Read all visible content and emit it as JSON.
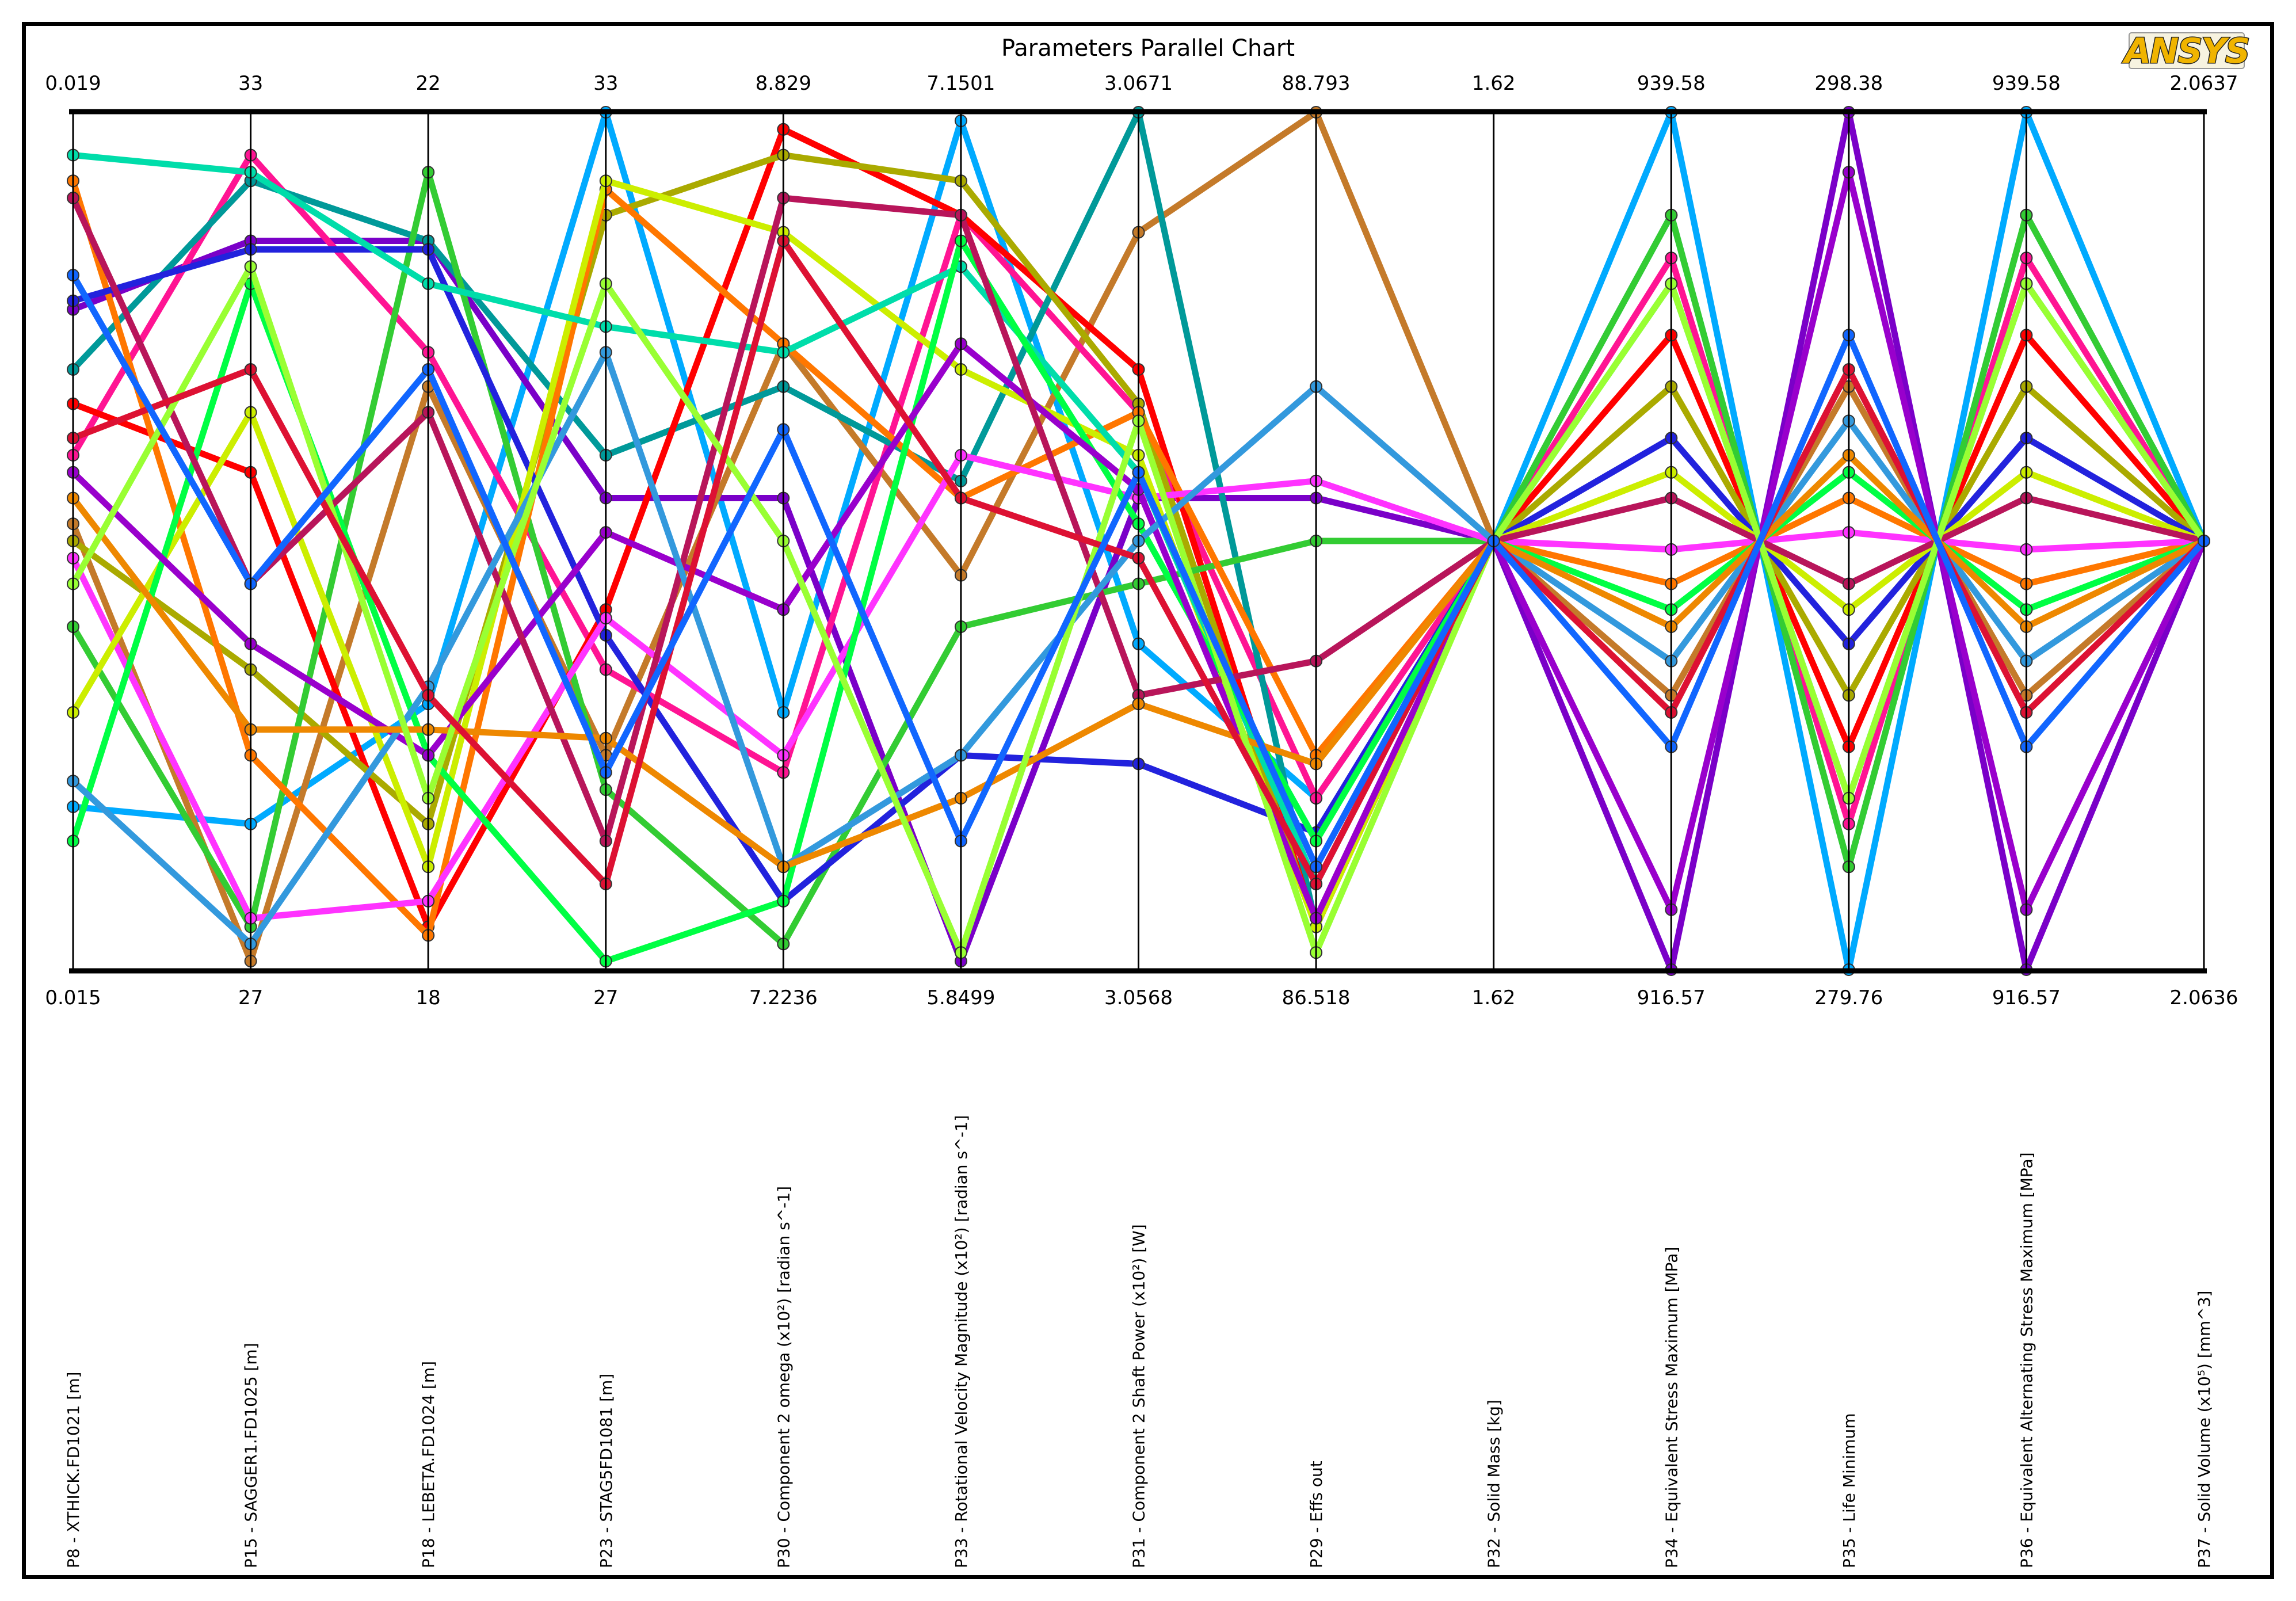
{
  "title": "Parameters Parallel Chart",
  "brand": "ANSYS",
  "chart_data": {
    "type": "parallel",
    "title": "Parameters Parallel Chart",
    "axes": [
      {
        "label": "P8 - XTHICK.FD1021  [m]",
        "max": "0.019",
        "min": "0.015"
      },
      {
        "label": "P15 - SAGGER1.FD1025  [m]",
        "max": "33",
        "min": "27"
      },
      {
        "label": "P18 - LEBETA.FD1024  [m]",
        "max": "22",
        "min": "18"
      },
      {
        "label": "P23 - STAG5FD1081  [m]",
        "max": "33",
        "min": "27"
      },
      {
        "label": "P30 - Component 2 omega  (x10²)  [radian s^-1]",
        "max": "8.829",
        "min": "7.2236"
      },
      {
        "label": "P33 - Rotational Velocity Magnitude  (x10²)  [radian s^-1]",
        "max": "7.1501",
        "min": "5.8499"
      },
      {
        "label": "P31 - Component 2 Shaft Power  (x10²)  [W]",
        "max": "3.0671",
        "min": "3.0568"
      },
      {
        "label": "P29 - Effs out",
        "max": "88.793",
        "min": "86.518"
      },
      {
        "label": "P32 - Solid Mass  [kg]",
        "max": "1.62",
        "min": "1.62"
      },
      {
        "label": "P34 - Equivalent Stress Maximum  [MPa]",
        "max": "939.58",
        "min": "916.57"
      },
      {
        "label": "P35 - Life Minimum",
        "max": "298.38",
        "min": "279.76"
      },
      {
        "label": "P36 - Equivalent Alternating Stress Maximum  [MPa]",
        "max": "939.58",
        "min": "916.57"
      },
      {
        "label": "P37 - Solid Volume  (x10⁵)  [mm^3]",
        "max": "2.0637",
        "min": "2.0636"
      }
    ],
    "series": [
      {
        "color": "#00aaff",
        "values": [
          0.19,
          0.17,
          0.31,
          1.0,
          0.3,
          0.99,
          0.38,
          0.2,
          0.5,
          1.0,
          0.0,
          1.0,
          0.5
        ]
      },
      {
        "color": "#7a00c8",
        "values": [
          0.77,
          0.85,
          0.85,
          0.55,
          0.55,
          0.01,
          0.55,
          0.55,
          0.5,
          0.0,
          1.0,
          0.0,
          0.5
        ]
      },
      {
        "color": "#c47a2a",
        "values": [
          0.52,
          0.01,
          0.68,
          0.25,
          0.73,
          0.46,
          0.86,
          1.0,
          0.5,
          0.32,
          0.68,
          0.32,
          0.5
        ]
      },
      {
        "color": "#ff1493",
        "values": [
          0.6,
          0.95,
          0.72,
          0.35,
          0.23,
          0.88,
          0.65,
          0.2,
          0.5,
          0.83,
          0.17,
          0.83,
          0.5
        ]
      },
      {
        "color": "#009999",
        "values": [
          0.7,
          0.92,
          0.85,
          0.6,
          0.68,
          0.57,
          1.0,
          0.05,
          0.5,
          0.88,
          0.12,
          0.88,
          0.5
        ]
      },
      {
        "color": "#ff0000",
        "values": [
          0.66,
          0.58,
          0.05,
          0.42,
          0.98,
          0.88,
          0.7,
          0.05,
          0.5,
          0.74,
          0.26,
          0.74,
          0.5
        ]
      },
      {
        "color": "#aaaa00",
        "values": [
          0.5,
          0.35,
          0.17,
          0.88,
          0.95,
          0.92,
          0.66,
          0.05,
          0.5,
          0.68,
          0.32,
          0.68,
          0.5
        ]
      },
      {
        "color": "#33cc33",
        "values": [
          0.4,
          0.05,
          0.93,
          0.21,
          0.03,
          0.4,
          0.45,
          0.5,
          0.5,
          0.88,
          0.12,
          0.88,
          0.5
        ]
      },
      {
        "color": "#ff7700",
        "values": [
          0.92,
          0.25,
          0.04,
          0.91,
          0.73,
          0.55,
          0.65,
          0.25,
          0.5,
          0.45,
          0.55,
          0.45,
          0.5
        ]
      },
      {
        "color": "#2222dd",
        "values": [
          0.78,
          0.84,
          0.84,
          0.39,
          0.08,
          0.25,
          0.24,
          0.16,
          0.5,
          0.62,
          0.38,
          0.62,
          0.5
        ]
      },
      {
        "color": "#ff33ff",
        "values": [
          0.48,
          0.06,
          0.08,
          0.41,
          0.25,
          0.6,
          0.55,
          0.57,
          0.5,
          0.49,
          0.51,
          0.49,
          0.5
        ]
      },
      {
        "color": "#ccee00",
        "values": [
          0.3,
          0.65,
          0.12,
          0.92,
          0.86,
          0.7,
          0.6,
          0.05,
          0.5,
          0.58,
          0.42,
          0.58,
          0.5
        ]
      },
      {
        "color": "#00ddaa",
        "values": [
          0.95,
          0.93,
          0.8,
          0.75,
          0.72,
          0.82,
          0.58,
          0.1,
          0.5,
          0.8,
          0.2,
          0.8,
          0.5
        ]
      },
      {
        "color": "#00ff44",
        "values": [
          0.15,
          0.8,
          0.25,
          0.01,
          0.08,
          0.85,
          0.52,
          0.15,
          0.5,
          0.42,
          0.58,
          0.42,
          0.5
        ]
      },
      {
        "color": "#9900cc",
        "values": [
          0.58,
          0.38,
          0.25,
          0.51,
          0.42,
          0.73,
          0.56,
          0.06,
          0.5,
          0.07,
          0.93,
          0.07,
          0.5
        ]
      },
      {
        "color": "#b8155a",
        "values": [
          0.9,
          0.45,
          0.65,
          0.15,
          0.9,
          0.88,
          0.32,
          0.36,
          0.5,
          0.55,
          0.45,
          0.55,
          0.5
        ]
      },
      {
        "color": "#3399dd",
        "values": [
          0.22,
          0.03,
          0.33,
          0.72,
          0.12,
          0.25,
          0.5,
          0.68,
          0.5,
          0.36,
          0.64,
          0.36,
          0.5
        ]
      },
      {
        "color": "#ee8800",
        "values": [
          0.55,
          0.28,
          0.28,
          0.27,
          0.12,
          0.2,
          0.31,
          0.24,
          0.5,
          0.4,
          0.6,
          0.4,
          0.5
        ]
      },
      {
        "color": "#99ff33",
        "values": [
          0.45,
          0.82,
          0.2,
          0.8,
          0.5,
          0.02,
          0.64,
          0.02,
          0.5,
          0.8,
          0.2,
          0.8,
          0.5
        ]
      },
      {
        "color": "#dd1133",
        "values": [
          0.62,
          0.7,
          0.32,
          0.1,
          0.85,
          0.55,
          0.48,
          0.1,
          0.5,
          0.3,
          0.7,
          0.3,
          0.5
        ]
      },
      {
        "color": "#1166ff",
        "values": [
          0.81,
          0.45,
          0.7,
          0.23,
          0.63,
          0.15,
          0.58,
          0.12,
          0.5,
          0.26,
          0.74,
          0.26,
          0.5
        ]
      }
    ]
  }
}
